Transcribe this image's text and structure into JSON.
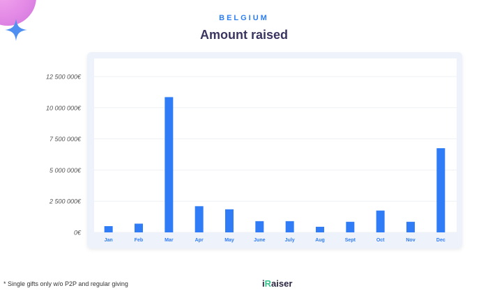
{
  "header": {
    "country": "BELGIUM",
    "title": "Amount raised"
  },
  "footnote": "* Single gifts only w/o P2P and regular giving",
  "logo": {
    "prefix": "i",
    "accent": "R",
    "suffix": "aiser"
  },
  "colors": {
    "bar": "#2f7cf6",
    "title": "#3a3560",
    "country": "#2d7ef0",
    "month_label": "#2f7cf6"
  },
  "chart_data": {
    "type": "bar",
    "title": "Amount raised",
    "xlabel": "",
    "ylabel": "",
    "categories": [
      "Jan",
      "Feb",
      "Mar",
      "Apr",
      "May",
      "June",
      "July",
      "Aug",
      "Sept",
      "Oct",
      "Nov",
      "Dec"
    ],
    "values": [
      500000,
      700000,
      10850000,
      2100000,
      1850000,
      900000,
      900000,
      450000,
      850000,
      1750000,
      850000,
      6750000
    ],
    "ylim": [
      0,
      12500000
    ],
    "yticks": [
      0,
      2500000,
      5000000,
      7500000,
      10000000,
      12500000
    ],
    "ytick_labels": [
      "0€",
      "2 500 000€",
      "5 000 000€",
      "7 500 000€",
      "10 000 000€",
      "12 500 000€"
    ],
    "grid": true,
    "legend": "none"
  }
}
